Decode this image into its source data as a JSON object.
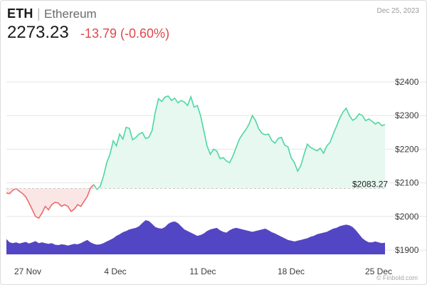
{
  "header": {
    "symbol": "ETH",
    "separator": "|",
    "name": "Ethereum",
    "date": "Dec 25, 2023",
    "price": "2273.23",
    "change": "-13.79 (-0.60%)"
  },
  "watermark": "© Finbold.com",
  "colors": {
    "up_line": "#4fd6a4",
    "up_fill": "#e6f8f0",
    "down_line": "#ef6b6b",
    "down_fill": "#fbe6e6",
    "volume": "#5346c4",
    "change_text": "#e0464a"
  },
  "chart_data": {
    "type": "area",
    "x_tick_labels": [
      "27 Nov",
      "4 Dec",
      "11 Dec",
      "18 Dec",
      "25 Dec"
    ],
    "y_tick_labels": [
      "$2400",
      "$2300",
      "$2200",
      "$2100",
      "$2000",
      "$1900"
    ],
    "ylim": [
      1900,
      2400
    ],
    "grid": true,
    "reference_line": {
      "value": 2083.27,
      "label": "$2083.27"
    },
    "series": [
      {
        "values": [
          2070,
          2068,
          2078,
          2083,
          2075,
          2068,
          2058,
          2040,
          2020,
          2000,
          1995,
          2010,
          2030,
          2020,
          2035,
          2042,
          2040,
          2030,
          2035,
          2030,
          2015,
          2022,
          2035,
          2030,
          2045,
          2060,
          2085,
          2095,
          2080,
          2090,
          2120,
          2160,
          2185,
          2225,
          2210,
          2245,
          2230,
          2265,
          2262,
          2228,
          2235,
          2245,
          2250,
          2232,
          2235,
          2255,
          2310,
          2350,
          2342,
          2355,
          2358,
          2345,
          2352,
          2338,
          2345,
          2340,
          2330,
          2356,
          2325,
          2330,
          2300,
          2255,
          2210,
          2185,
          2200,
          2195,
          2172,
          2175,
          2165,
          2160,
          2180,
          2205,
          2230,
          2245,
          2258,
          2275,
          2300,
          2285,
          2260,
          2247,
          2243,
          2245,
          2226,
          2218,
          2232,
          2235,
          2212,
          2207,
          2175,
          2160,
          2135,
          2152,
          2185,
          2215,
          2205,
          2200,
          2195,
          2203,
          2188,
          2210,
          2220,
          2245,
          2268,
          2292,
          2310,
          2322,
          2300,
          2286,
          2292,
          2305,
          2300,
          2285,
          2290,
          2283,
          2275,
          2280,
          2270,
          2273
        ]
      }
    ],
    "volume": [
      38,
      30,
      28,
      30,
      27,
      29,
      31,
      27,
      30,
      33,
      28,
      30,
      28,
      26,
      28,
      24,
      23,
      25,
      24,
      22,
      24,
      26,
      25,
      28,
      32,
      36,
      30,
      26,
      24,
      25,
      28,
      32,
      36,
      40,
      46,
      50,
      55,
      58,
      62,
      64,
      66,
      70,
      78,
      85,
      83,
      76,
      68,
      65,
      64,
      68,
      76,
      80,
      82,
      78,
      70,
      62,
      58,
      54,
      50,
      46,
      48,
      52,
      58,
      62,
      64,
      66,
      60,
      56,
      54,
      60,
      64,
      66,
      64,
      62,
      60,
      58,
      56,
      58,
      60,
      62,
      64,
      60,
      55,
      52,
      48,
      44,
      40,
      36,
      34,
      32,
      34,
      36,
      38,
      40,
      44,
      46,
      50,
      52,
      54,
      56,
      60,
      64,
      66,
      70,
      72,
      74,
      72,
      68,
      60,
      50,
      40,
      34,
      30,
      30,
      32,
      30,
      28,
      29
    ]
  }
}
